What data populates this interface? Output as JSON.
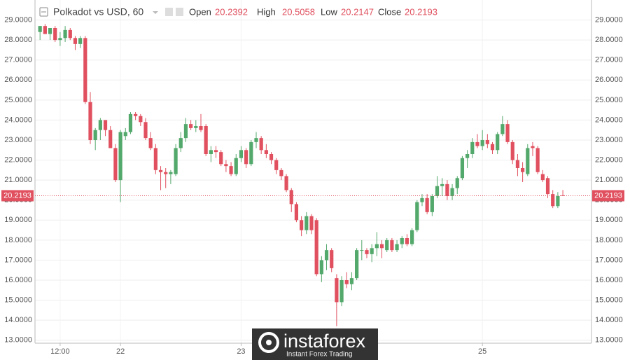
{
  "chart_data": {
    "type": "candlestick",
    "title": "Polkadot vs USD, 60",
    "ohlc_labels": {
      "open": "Open",
      "high": "High",
      "low": "Low",
      "close": "Close"
    },
    "up_color": "#53a86b",
    "down_color": "#e0505f",
    "grid": true,
    "x": [
      8,
      9,
      10,
      11,
      12,
      13,
      14,
      15,
      16,
      17,
      18,
      19,
      20,
      21,
      22,
      23,
      24,
      25,
      26,
      27,
      28,
      29,
      30,
      31,
      32,
      33,
      34,
      35,
      36,
      37,
      38,
      39,
      40,
      41,
      42,
      43,
      44,
      45,
      46,
      47,
      48,
      49,
      50,
      51,
      52,
      53,
      54,
      55,
      56,
      57,
      58,
      59,
      60,
      61,
      62,
      63,
      64,
      65,
      66,
      67,
      68,
      69,
      70,
      71,
      72,
      73,
      74,
      75,
      76,
      77,
      78,
      79,
      80,
      81,
      82,
      83,
      84,
      85,
      86,
      87,
      88,
      89,
      90,
      91,
      92,
      93,
      94,
      95,
      96,
      97,
      98,
      99,
      100,
      101,
      102,
      103,
      104,
      105,
      106,
      107,
      108,
      109,
      110,
      111,
      112
    ],
    "open": [
      28.4,
      28.7,
      28.3,
      28.6,
      28.0,
      28.1,
      28.5,
      28.1,
      27.8,
      28.1,
      24.9,
      23.0,
      23.5,
      24.0,
      23.5,
      22.6,
      21.0,
      23.2,
      23.4,
      24.3,
      24.2,
      23.9,
      23.1,
      22.6,
      21.5,
      21.4,
      21.3,
      21.3,
      22.6,
      23.1,
      23.8,
      23.6,
      23.7,
      23.7,
      22.3,
      22.5,
      22.4,
      21.8,
      21.7,
      21.3,
      22.1,
      22.5,
      21.8,
      22.9,
      23.1,
      22.5,
      22.3,
      22.0,
      21.5,
      21.2,
      20.5,
      19.8,
      19.0,
      18.5,
      19.2,
      19.0,
      16.3,
      17.0,
      17.5,
      16.1,
      14.9,
      16.0,
      15.8,
      16.1,
      17.5,
      17.5,
      17.3,
      17.6,
      17.8,
      17.5,
      18.0,
      17.5,
      17.8,
      18.1,
      17.8,
      18.5,
      19.9,
      20.1,
      19.4,
      20.2,
      20.7,
      20.8,
      20.2,
      20.6,
      21.1,
      22.1,
      22.3,
      22.9,
      22.7,
      23.0,
      22.8,
      22.5,
      23.3,
      23.8,
      22.9,
      22.0,
      21.6,
      21.3,
      22.7,
      22.6,
      21.3,
      21.1,
      20.3,
      19.7,
      20.2392
    ],
    "high": [
      28.7,
      28.8,
      28.6,
      28.7,
      28.4,
      28.7,
      28.6,
      28.2,
      28.2,
      28.2,
      25.4,
      23.6,
      24.1,
      24.0,
      23.7,
      22.8,
      23.5,
      23.6,
      24.4,
      24.4,
      24.3,
      24.1,
      23.4,
      22.8,
      21.7,
      21.6,
      21.5,
      22.8,
      23.4,
      24.1,
      24.0,
      24.0,
      24.3,
      23.8,
      22.7,
      22.7,
      22.5,
      22.0,
      21.9,
      22.3,
      22.7,
      22.6,
      23.0,
      23.4,
      23.2,
      22.8,
      22.4,
      22.1,
      21.6,
      21.3,
      20.6,
      19.9,
      19.2,
      19.4,
      19.3,
      19.1,
      17.2,
      17.8,
      17.6,
      16.3,
      16.2,
      16.4,
      16.4,
      17.6,
      18.0,
      17.6,
      17.8,
      18.4,
      18.0,
      18.1,
      18.1,
      18.0,
      18.2,
      18.3,
      18.6,
      20.0,
      20.3,
      20.3,
      20.3,
      21.2,
      21.1,
      21.0,
      20.8,
      21.2,
      22.2,
      22.5,
      23.1,
      23.3,
      23.5,
      23.3,
      22.9,
      23.4,
      24.2,
      24.0,
      23.0,
      22.3,
      21.9,
      22.8,
      22.9,
      22.7,
      21.5,
      21.2,
      20.5,
      20.4,
      20.5058
    ],
    "low": [
      28.0,
      28.3,
      28.0,
      27.9,
      27.7,
      27.9,
      28.0,
      27.5,
      27.6,
      24.8,
      22.8,
      22.5,
      23.0,
      23.2,
      22.6,
      20.9,
      19.9,
      23.0,
      23.3,
      24.0,
      23.7,
      23.0,
      22.5,
      21.3,
      20.5,
      20.6,
      20.8,
      21.2,
      22.4,
      22.9,
      23.5,
      23.4,
      23.4,
      22.2,
      21.9,
      22.1,
      21.7,
      21.4,
      21.2,
      21.2,
      21.9,
      21.6,
      21.7,
      22.6,
      22.3,
      22.1,
      21.8,
      21.3,
      21.0,
      20.4,
      19.4,
      18.9,
      18.2,
      18.3,
      18.3,
      16.2,
      15.9,
      16.5,
      16.4,
      13.7,
      14.7,
      15.6,
      15.5,
      16.0,
      17.0,
      17.1,
      16.9,
      17.2,
      17.1,
      17.4,
      17.4,
      17.4,
      17.6,
      17.7,
      17.7,
      18.4,
      19.7,
      19.3,
      19.2,
      20.1,
      20.2,
      20.0,
      20.0,
      20.3,
      21.0,
      21.6,
      22.1,
      22.6,
      22.5,
      22.6,
      22.3,
      22.3,
      23.2,
      22.8,
      21.8,
      21.2,
      20.9,
      21.2,
      22.2,
      21.3,
      20.9,
      20.1,
      19.6,
      19.6,
      20.2147
    ],
    "close": [
      28.7,
      28.3,
      28.6,
      28.0,
      28.1,
      28.5,
      28.1,
      27.8,
      28.1,
      24.9,
      23.0,
      23.5,
      24.0,
      23.5,
      22.6,
      21.0,
      23.4,
      23.4,
      24.3,
      24.2,
      23.9,
      23.1,
      22.6,
      21.5,
      21.4,
      21.3,
      21.4,
      22.6,
      23.1,
      23.8,
      23.6,
      23.7,
      23.5,
      22.3,
      22.5,
      22.4,
      21.8,
      21.7,
      21.3,
      22.1,
      22.5,
      21.8,
      22.9,
      23.1,
      22.5,
      22.3,
      22.0,
      21.5,
      21.2,
      20.5,
      19.8,
      19.0,
      18.5,
      19.2,
      18.5,
      16.3,
      17.0,
      17.5,
      16.6,
      14.9,
      16.0,
      15.8,
      16.1,
      17.5,
      17.5,
      17.3,
      17.6,
      17.8,
      17.6,
      18.0,
      17.5,
      17.8,
      18.1,
      17.8,
      18.5,
      19.9,
      20.1,
      19.4,
      20.2,
      20.7,
      20.8,
      20.2,
      20.6,
      21.1,
      22.1,
      22.3,
      22.9,
      22.7,
      23.0,
      22.8,
      22.5,
      23.3,
      23.8,
      22.9,
      22.0,
      21.6,
      21.4,
      22.6,
      22.6,
      21.4,
      21.0,
      20.3,
      19.7,
      20.2,
      20.2193
    ],
    "xlim": [
      7,
      117.7
    ],
    "xticks": [
      {
        "value": 12,
        "label": "12:00"
      },
      {
        "value": 24,
        "label": "22"
      },
      {
        "value": 48,
        "label": "23"
      },
      {
        "value": 96,
        "label": "25"
      }
    ],
    "ylim": [
      12.85,
      30
    ],
    "yticks": [
      {
        "value": 13,
        "label": "13.0000"
      },
      {
        "value": 14,
        "label": "14.0000"
      },
      {
        "value": 15,
        "label": "15.0000"
      },
      {
        "value": 16,
        "label": "16.0000"
      },
      {
        "value": 17,
        "label": "17.0000"
      },
      {
        "value": 18,
        "label": "18.0000"
      },
      {
        "value": 19,
        "label": "19.0000"
      },
      {
        "value": 20,
        "label": "20.0000"
      },
      {
        "value": 21,
        "label": "21.0000"
      },
      {
        "value": 22,
        "label": "22.0000"
      },
      {
        "value": 23,
        "label": "23.0000"
      },
      {
        "value": 24,
        "label": "24.0000"
      },
      {
        "value": 25,
        "label": "25.0000"
      },
      {
        "value": 26,
        "label": "26.0000"
      },
      {
        "value": 27,
        "label": "27.0000"
      },
      {
        "value": 28,
        "label": "28.0000"
      },
      {
        "value": 29,
        "label": "29.0000"
      }
    ]
  },
  "watermark": {
    "brand": "instaforex",
    "tagline": "Instant Forex Trading"
  }
}
